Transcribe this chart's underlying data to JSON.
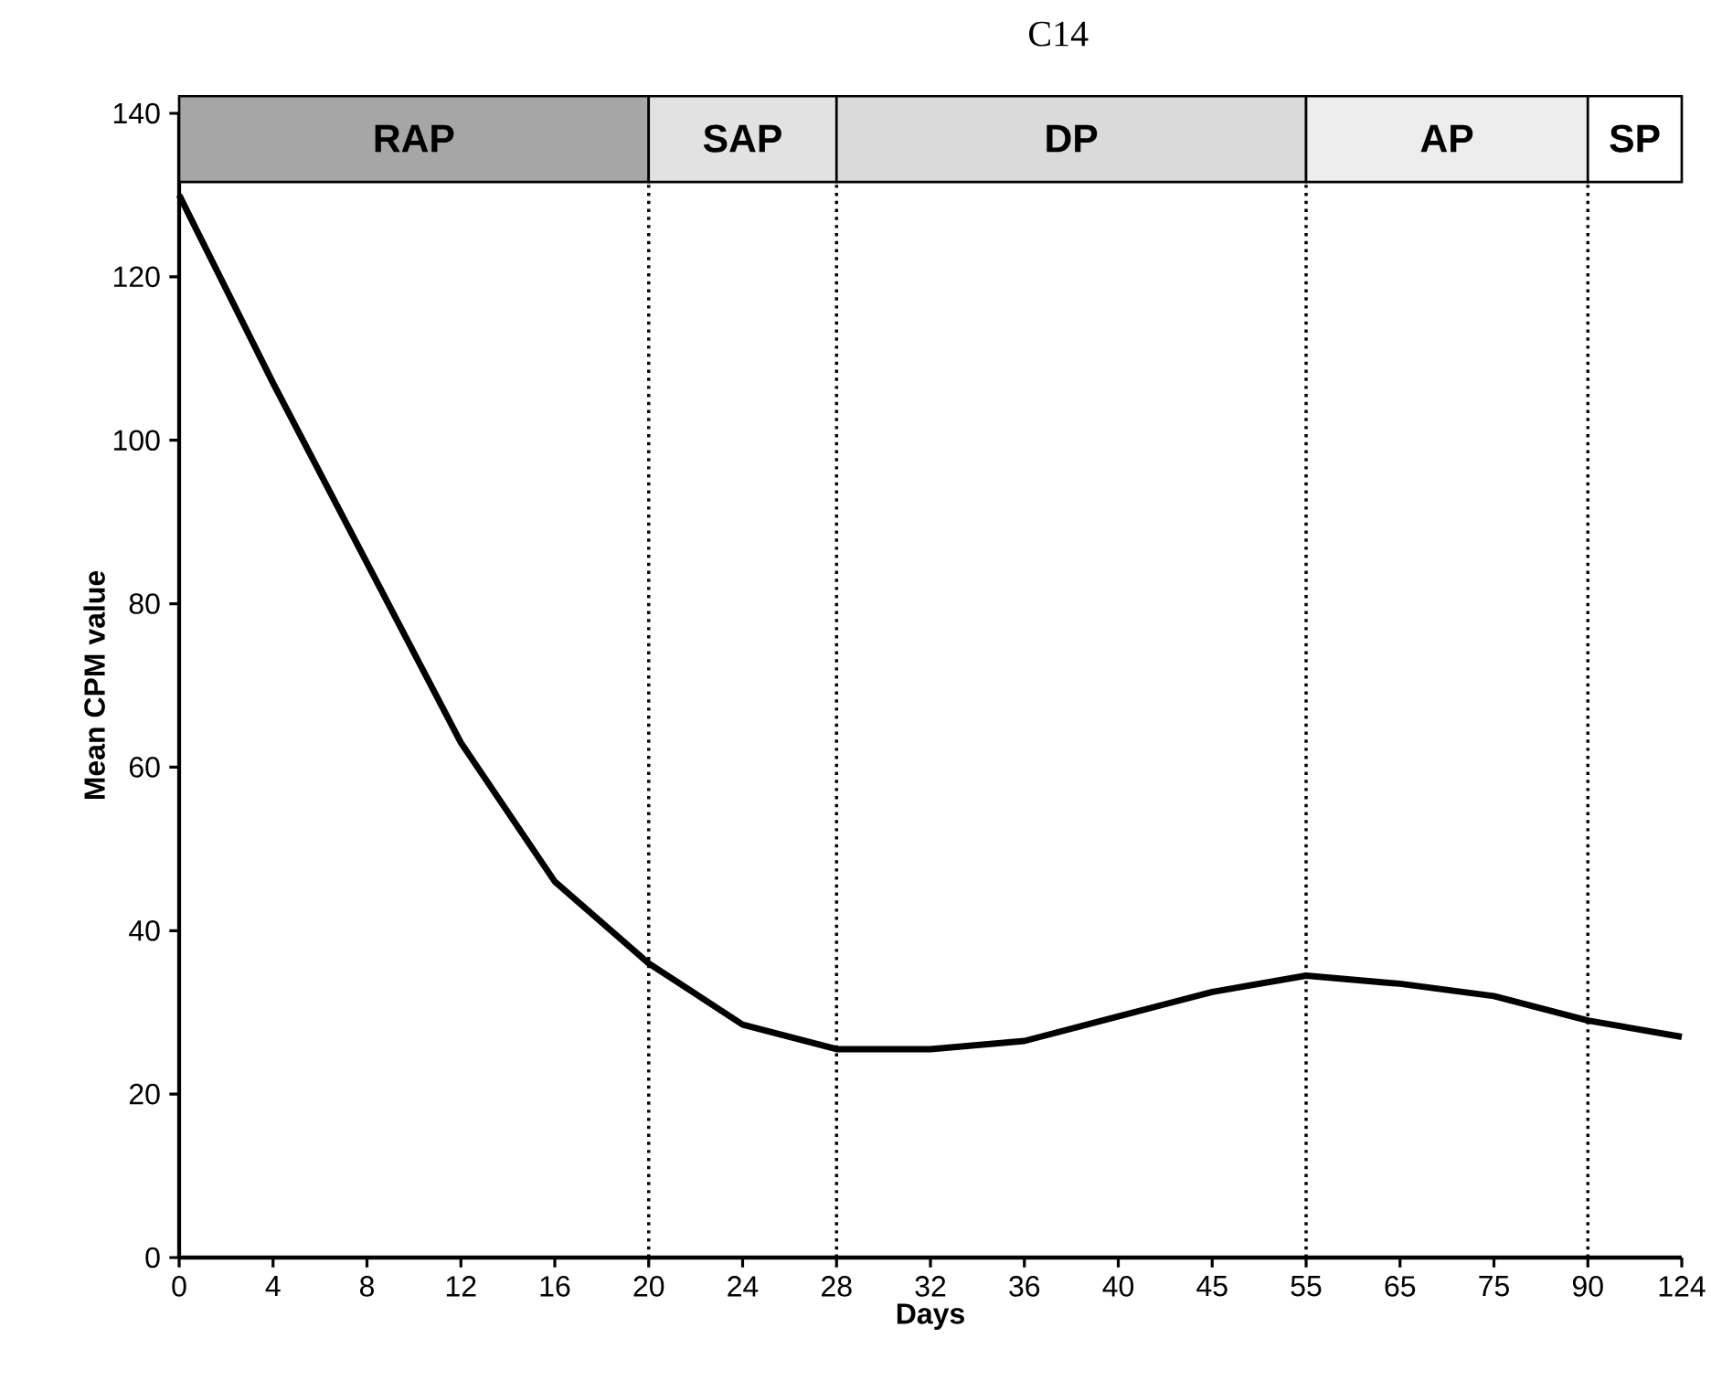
{
  "chart_data": {
    "type": "line",
    "title": "C14",
    "xlabel": "Days",
    "ylabel": "Mean CPM value",
    "categories": [
      "0",
      "4",
      "8",
      "12",
      "16",
      "20",
      "24",
      "28",
      "32",
      "36",
      "40",
      "45",
      "55",
      "65",
      "75",
      "90",
      "124"
    ],
    "series": [
      {
        "color": "#000000",
        "values": [
          130,
          107,
          85,
          63,
          46,
          36,
          28.5,
          25.5,
          25.5,
          26.5,
          29.5,
          32.5,
          34.5,
          33.5,
          32,
          29,
          27
        ]
      }
    ],
    "ylim": [
      0,
      140
    ],
    "yticks": [
      0,
      20,
      40,
      60,
      80,
      100,
      120,
      140
    ],
    "grid": false,
    "marker": "none",
    "line_style": "solid",
    "ref_lines": [
      {
        "axis": "x",
        "value": "20",
        "color": "#000000",
        "line_style": "dotted"
      },
      {
        "axis": "x",
        "value": "28",
        "color": "#000000",
        "line_style": "dotted"
      },
      {
        "axis": "x",
        "value": "55",
        "color": "#000000",
        "line_style": "dotted"
      },
      {
        "axis": "x",
        "value": "90",
        "color": "#000000",
        "line_style": "dotted"
      }
    ],
    "bands": [
      {
        "axis": "x",
        "from": "0",
        "to": "20",
        "label": "RAP",
        "color": "#a6a6a6"
      },
      {
        "axis": "x",
        "from": "20",
        "to": "28",
        "label": "SAP",
        "color": "#e2e2e2"
      },
      {
        "axis": "x",
        "from": "28",
        "to": "55",
        "label": "DP",
        "color": "#dadada"
      },
      {
        "axis": "x",
        "from": "55",
        "to": "90",
        "label": "AP",
        "color": "#ededed"
      },
      {
        "axis": "x",
        "from": "90",
        "to": "124",
        "label": "SP",
        "color": "#ffffff"
      }
    ]
  }
}
